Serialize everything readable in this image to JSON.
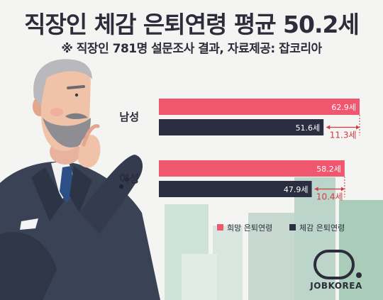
{
  "header": {
    "title": "직장인 체감 은퇴연령 평균 50.2세",
    "subtitle": "※ 직장인 781명 설문조사 결과,  자료제공: 잡코리아"
  },
  "logo": {
    "text": "JOBKOREA"
  },
  "colors": {
    "hope": "#f0566e",
    "felt": "#2b2e40",
    "gap": "#d23a44"
  },
  "chart_data": {
    "type": "bar",
    "orientation": "horizontal",
    "categories": [
      "남성",
      "여성"
    ],
    "series": [
      {
        "name": "희망 은퇴연령",
        "values": [
          62.9,
          58.2
        ],
        "labels": [
          "62.9세",
          "58.2세"
        ]
      },
      {
        "name": "체감 은퇴연령",
        "values": [
          51.6,
          47.9
        ],
        "labels": [
          "51.6세",
          "47.9세"
        ]
      }
    ],
    "differences": [
      "11.3세",
      "10.4세"
    ],
    "legend_position": "bottom-right"
  }
}
